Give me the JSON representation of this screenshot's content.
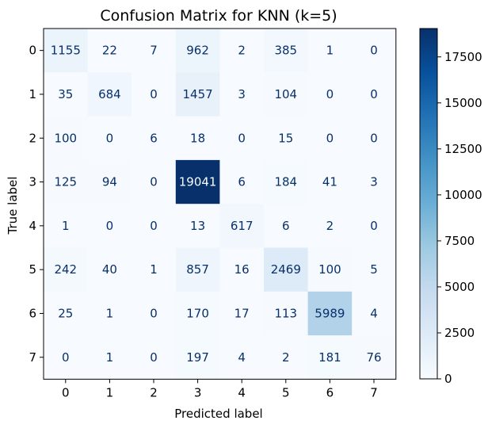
{
  "chart_data": {
    "type": "heatmap",
    "title": "Confusion Matrix for KNN (k=5)",
    "xlabel": "Predicted label",
    "ylabel": "True label",
    "x_categories": [
      "0",
      "1",
      "2",
      "3",
      "4",
      "5",
      "6",
      "7"
    ],
    "y_categories": [
      "0",
      "1",
      "2",
      "3",
      "4",
      "5",
      "6",
      "7"
    ],
    "values": [
      [
        1155,
        22,
        7,
        962,
        2,
        385,
        1,
        0
      ],
      [
        35,
        684,
        0,
        1457,
        3,
        104,
        0,
        0
      ],
      [
        100,
        0,
        6,
        18,
        0,
        15,
        0,
        0
      ],
      [
        125,
        94,
        0,
        19041,
        6,
        184,
        41,
        3
      ],
      [
        1,
        0,
        0,
        13,
        617,
        6,
        2,
        0
      ],
      [
        242,
        40,
        1,
        857,
        16,
        2469,
        100,
        5
      ],
      [
        25,
        1,
        0,
        170,
        17,
        113,
        5989,
        4
      ],
      [
        0,
        1,
        0,
        197,
        4,
        2,
        181,
        76
      ]
    ],
    "colormap": "Blues",
    "color_range": [
      0,
      19041
    ],
    "colorbar_ticks": [
      0,
      2500,
      5000,
      7500,
      10000,
      12500,
      15000,
      17500
    ],
    "colorbar_tick_labels": [
      "0",
      "2500",
      "5000",
      "7500",
      "10000",
      "12500",
      "15000",
      "17500"
    ],
    "grid": false,
    "colors": {
      "low": "#f7fbff",
      "high": "#08306b",
      "text_dark": "#08306b",
      "text_light": "#f7fbff"
    }
  }
}
